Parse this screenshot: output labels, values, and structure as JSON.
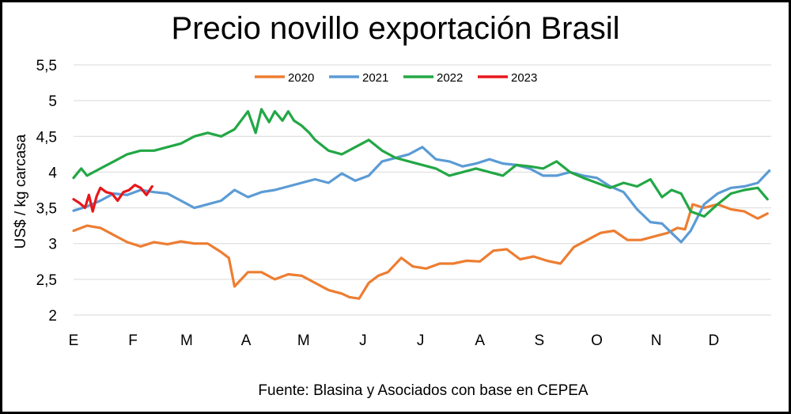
{
  "chart_data": {
    "type": "line",
    "title": "Precio novillo exportación Brasil",
    "ylabel": "US$ / kg carcasa",
    "xlabel": "",
    "source_note": "Fuente: Blasina y Asociados con base en CEPEA",
    "ylim": [
      2,
      5.5
    ],
    "yticks": [
      2,
      2.5,
      3,
      3.5,
      4,
      4.5,
      5,
      5.5
    ],
    "ytick_labels": [
      "2",
      "2,5",
      "3",
      "3,5",
      "4",
      "4,5",
      "5",
      "5,5"
    ],
    "x_unit": "day of year",
    "xlim": [
      1,
      365
    ],
    "month_labels": [
      "E",
      "F",
      "M",
      "A",
      "M",
      "J",
      "J",
      "A",
      "S",
      "O",
      "N",
      "D"
    ],
    "month_positions": [
      1,
      32,
      60,
      91,
      121,
      152,
      182,
      213,
      244,
      274,
      305,
      335
    ],
    "grid": "horizontal",
    "legend_position": "top",
    "series": [
      {
        "name": "2020",
        "color": "#ED7D31",
        "x": [
          1,
          8,
          15,
          22,
          29,
          36,
          43,
          50,
          57,
          64,
          71,
          78,
          82,
          85,
          92,
          99,
          106,
          113,
          120,
          127,
          134,
          141,
          145,
          150,
          155,
          160,
          165,
          172,
          178,
          185,
          192,
          199,
          206,
          213,
          220,
          227,
          234,
          241,
          248,
          255,
          262,
          269,
          276,
          283,
          290,
          297,
          304,
          311,
          316,
          320,
          324,
          330,
          337,
          344,
          351,
          358,
          363
        ],
        "values": [
          3.18,
          3.25,
          3.22,
          3.12,
          3.02,
          2.96,
          3.02,
          2.99,
          3.03,
          3.0,
          3.0,
          2.88,
          2.8,
          2.4,
          2.6,
          2.6,
          2.5,
          2.57,
          2.55,
          2.45,
          2.35,
          2.3,
          2.25,
          2.23,
          2.45,
          2.55,
          2.6,
          2.8,
          2.68,
          2.65,
          2.72,
          2.72,
          2.76,
          2.75,
          2.9,
          2.92,
          2.78,
          2.82,
          2.76,
          2.72,
          2.95,
          3.05,
          3.15,
          3.18,
          3.05,
          3.05,
          3.1,
          3.15,
          3.22,
          3.2,
          3.55,
          3.5,
          3.55,
          3.48,
          3.45,
          3.35,
          3.42
        ]
      },
      {
        "name": "2021",
        "color": "#5B9BD5",
        "x": [
          1,
          8,
          15,
          22,
          29,
          36,
          43,
          50,
          57,
          64,
          71,
          78,
          85,
          92,
          99,
          106,
          113,
          120,
          127,
          134,
          141,
          148,
          155,
          162,
          169,
          176,
          183,
          190,
          197,
          204,
          211,
          218,
          225,
          232,
          239,
          246,
          253,
          260,
          267,
          274,
          281,
          288,
          295,
          302,
          308,
          313,
          318,
          323,
          330,
          337,
          344,
          351,
          358,
          364
        ],
        "values": [
          3.46,
          3.52,
          3.6,
          3.7,
          3.68,
          3.75,
          3.72,
          3.7,
          3.6,
          3.5,
          3.55,
          3.6,
          3.75,
          3.65,
          3.72,
          3.75,
          3.8,
          3.85,
          3.9,
          3.85,
          3.98,
          3.88,
          3.95,
          4.15,
          4.2,
          4.25,
          4.35,
          4.18,
          4.15,
          4.08,
          4.12,
          4.18,
          4.12,
          4.1,
          4.05,
          3.95,
          3.95,
          4.0,
          3.95,
          3.92,
          3.8,
          3.72,
          3.48,
          3.3,
          3.28,
          3.15,
          3.02,
          3.18,
          3.55,
          3.7,
          3.78,
          3.8,
          3.85,
          4.02
        ]
      },
      {
        "name": "2022",
        "color": "#22A745",
        "x": [
          1,
          5,
          8,
          15,
          22,
          29,
          36,
          43,
          50,
          57,
          64,
          71,
          78,
          85,
          92,
          96,
          99,
          103,
          106,
          110,
          113,
          116,
          120,
          124,
          127,
          134,
          141,
          148,
          155,
          162,
          169,
          176,
          183,
          190,
          197,
          204,
          211,
          218,
          225,
          232,
          239,
          246,
          253,
          260,
          267,
          274,
          281,
          288,
          295,
          302,
          308,
          313,
          318,
          323,
          330,
          337,
          344,
          351,
          358,
          363
        ],
        "values": [
          3.92,
          4.05,
          3.95,
          4.05,
          4.15,
          4.25,
          4.3,
          4.3,
          4.35,
          4.4,
          4.5,
          4.55,
          4.5,
          4.6,
          4.85,
          4.55,
          4.88,
          4.7,
          4.85,
          4.72,
          4.85,
          4.72,
          4.65,
          4.55,
          4.45,
          4.3,
          4.25,
          4.35,
          4.45,
          4.3,
          4.2,
          4.15,
          4.1,
          4.05,
          3.95,
          4.0,
          4.05,
          4.0,
          3.95,
          4.1,
          4.08,
          4.05,
          4.15,
          4.0,
          3.92,
          3.85,
          3.78,
          3.85,
          3.8,
          3.9,
          3.65,
          3.75,
          3.7,
          3.45,
          3.38,
          3.55,
          3.7,
          3.75,
          3.78,
          3.62
        ]
      },
      {
        "name": "2023",
        "color": "#E8161B",
        "x": [
          1,
          4,
          7,
          9,
          11,
          13,
          15,
          18,
          21,
          24,
          27,
          30,
          33,
          36,
          39,
          42
        ],
        "values": [
          3.62,
          3.57,
          3.5,
          3.68,
          3.45,
          3.66,
          3.78,
          3.72,
          3.7,
          3.6,
          3.72,
          3.75,
          3.82,
          3.78,
          3.68,
          3.8
        ]
      }
    ]
  }
}
